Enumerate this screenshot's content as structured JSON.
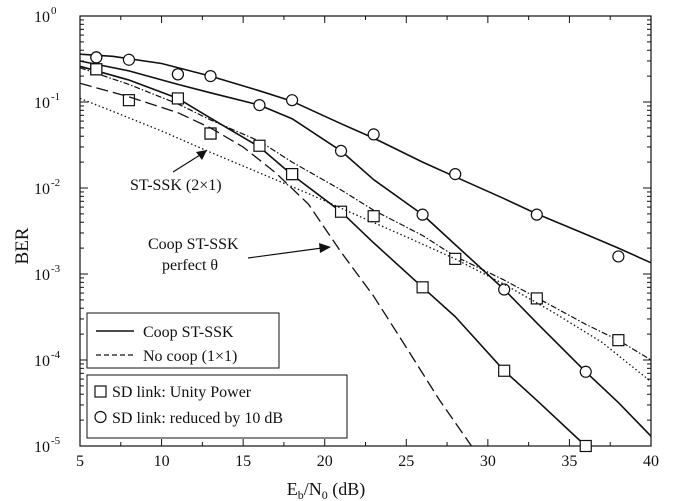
{
  "chart_data": {
    "type": "line",
    "xlabel": {
      "main": "E",
      "sub1": "b",
      "mid": "/N",
      "sub2": "0",
      "tail": " (dB)"
    },
    "ylabel": "BER",
    "xlim": [
      5,
      40
    ],
    "ylim": [
      1e-05,
      1
    ],
    "yscale": "log",
    "xticks": [
      "5",
      "10",
      "15",
      "20",
      "25",
      "30",
      "35",
      "40"
    ],
    "yticks": [
      {
        "base": "10",
        "exp": "0"
      },
      {
        "base": "10",
        "exp": "-1"
      },
      {
        "base": "10",
        "exp": "-2"
      },
      {
        "base": "10",
        "exp": "-3"
      },
      {
        "base": "10",
        "exp": "-4"
      },
      {
        "base": "10",
        "exp": "-5"
      }
    ],
    "grid": false,
    "series": [
      {
        "style": "solid",
        "marker": "circle",
        "curve": [
          [
            5,
            0.36
          ],
          [
            7,
            0.34
          ],
          [
            10,
            0.28
          ],
          [
            13,
            0.2
          ],
          [
            16,
            0.135
          ],
          [
            18,
            0.102
          ],
          [
            21,
            0.056
          ],
          [
            23,
            0.038
          ],
          [
            26,
            0.02
          ],
          [
            28,
            0.0135
          ],
          [
            31,
            0.0075
          ],
          [
            33,
            0.005
          ],
          [
            36,
            0.0029
          ],
          [
            38,
            0.002
          ],
          [
            40,
            0.00135
          ]
        ],
        "markers": [
          [
            6,
            0.33
          ],
          [
            8,
            0.31
          ],
          [
            11,
            0.21
          ],
          [
            13,
            0.2
          ],
          [
            18,
            0.105
          ],
          [
            23,
            0.042
          ],
          [
            28,
            0.0145
          ],
          [
            33,
            0.0049
          ],
          [
            38,
            0.0016
          ]
        ]
      },
      {
        "style": "solid",
        "marker": "circle",
        "curve": [
          [
            5,
            0.3
          ],
          [
            8,
            0.23
          ],
          [
            11,
            0.16
          ],
          [
            13,
            0.128
          ],
          [
            16,
            0.092
          ],
          [
            18,
            0.064
          ],
          [
            21,
            0.027
          ],
          [
            23,
            0.0125
          ],
          [
            26,
            0.0049
          ],
          [
            28,
            0.0022
          ],
          [
            31,
            0.00066
          ],
          [
            33,
            0.00027
          ],
          [
            36,
            7.3e-05
          ],
          [
            38,
            3.2e-05
          ],
          [
            40,
            1.3e-05
          ]
        ],
        "markers": [
          [
            6,
            0.33
          ],
          [
            11,
            0.21
          ],
          [
            16,
            0.092
          ],
          [
            21,
            0.027
          ],
          [
            26,
            0.0049
          ],
          [
            31,
            0.00066
          ],
          [
            36,
            7.3e-05
          ]
        ]
      },
      {
        "style": "dashdot",
        "marker": "square",
        "curve": [
          [
            5,
            0.25
          ],
          [
            8,
            0.16
          ],
          [
            11,
            0.095
          ],
          [
            13,
            0.062
          ],
          [
            16,
            0.035
          ],
          [
            18,
            0.02
          ],
          [
            21,
            0.0095
          ],
          [
            23,
            0.0055
          ],
          [
            26,
            0.0028
          ],
          [
            28,
            0.0016
          ],
          [
            31,
            0.00085
          ],
          [
            33,
            0.00053
          ],
          [
            36,
            0.00026
          ],
          [
            38,
            0.00017
          ],
          [
            40,
            0.0001
          ]
        ],
        "markers": [
          [
            6,
            0.24
          ],
          [
            8,
            0.105
          ],
          [
            13,
            0.043
          ],
          [
            18,
            0.0145
          ],
          [
            23,
            0.0047
          ],
          [
            28,
            0.0015
          ],
          [
            33,
            0.00052
          ],
          [
            38,
            0.00017
          ]
        ]
      },
      {
        "style": "solid",
        "marker": "square",
        "curve": [
          [
            5,
            0.26
          ],
          [
            8,
            0.18
          ],
          [
            11,
            0.11
          ],
          [
            13,
            0.065
          ],
          [
            16,
            0.03
          ],
          [
            18,
            0.0142
          ],
          [
            21,
            0.0053
          ],
          [
            23,
            0.0023
          ],
          [
            26,
            0.0007
          ],
          [
            28,
            0.00032
          ],
          [
            31,
            7.5e-05
          ],
          [
            33,
            3.4e-05
          ],
          [
            36,
            1e-05
          ]
        ],
        "markers": [
          [
            6,
            0.24
          ],
          [
            11,
            0.11
          ],
          [
            13,
            0.043
          ],
          [
            16,
            0.031
          ],
          [
            18,
            0.0145
          ],
          [
            21,
            0.0053
          ],
          [
            26,
            0.0007
          ],
          [
            31,
            7.5e-05
          ],
          [
            36,
            1e-05
          ]
        ]
      },
      {
        "style": "longdash",
        "marker": "none",
        "curve": [
          [
            5,
            0.165
          ],
          [
            8,
            0.115
          ],
          [
            11,
            0.075
          ],
          [
            13,
            0.05
          ],
          [
            15,
            0.03
          ],
          [
            17,
            0.015
          ],
          [
            19,
            0.0065
          ],
          [
            21,
            0.0018
          ],
          [
            23,
            0.00055
          ],
          [
            25,
            0.00014
          ],
          [
            27,
            3.5e-05
          ],
          [
            29,
            1e-05
          ]
        ]
      },
      {
        "style": "dotted",
        "marker": "none",
        "curve": [
          [
            5,
            0.11
          ],
          [
            7,
            0.078
          ],
          [
            10,
            0.046
          ],
          [
            13,
            0.026
          ],
          [
            16,
            0.015
          ],
          [
            19,
            0.0086
          ],
          [
            22,
            0.0048
          ],
          [
            25,
            0.0027
          ],
          [
            28,
            0.0015
          ],
          [
            31,
            0.00076
          ],
          [
            34,
            0.00036
          ],
          [
            37,
            0.00016
          ],
          [
            40,
            5.6e-05
          ]
        ]
      }
    ],
    "annotations": {
      "stssk": "ST-SSK (2×1)",
      "coop_line1": "Coop ST-SSK",
      "coop_line2": "perfect θ"
    },
    "legends": {
      "line_styles": [
        "Coop ST-SSK",
        "No coop (1×1)"
      ],
      "markers": [
        "SD link: Unity Power",
        "SD link: reduced by 10 dB"
      ]
    }
  }
}
